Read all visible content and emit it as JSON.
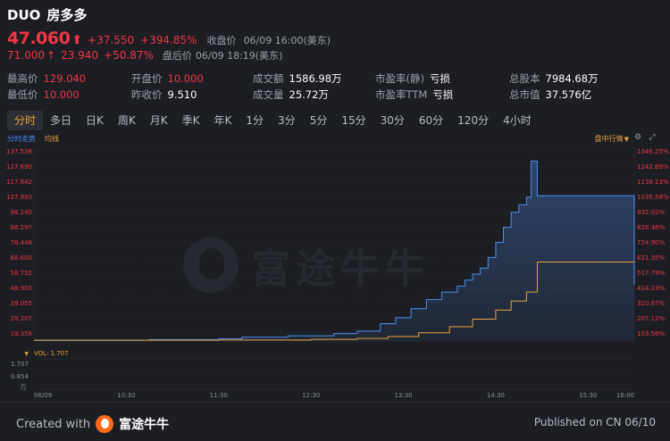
{
  "quote": {
    "ticker": "DUO",
    "company_name": "房多多",
    "last_price": "47.060",
    "change": "+37.550",
    "change_pct": "+394.85%",
    "close_label": "收盘价",
    "close_time": "06/09 16:00(美东)",
    "after_hours_price": "71.000",
    "after_hours_change": "23.940",
    "after_hours_change_pct": "+50.87%",
    "after_hours_label": "盘后价",
    "after_hours_time": "06/09 18:19(美东)"
  },
  "stats": {
    "high": {
      "label": "最高价",
      "value": "129.040"
    },
    "low": {
      "label": "最低价",
      "value": "10.000"
    },
    "open": {
      "label": "开盘价",
      "value": "10.000"
    },
    "prev_close": {
      "label": "昨收价",
      "value": "9.510"
    },
    "turnover": {
      "label": "成交额",
      "value": "1586.98万"
    },
    "volume": {
      "label": "成交量",
      "value": "25.72万"
    },
    "pe_static": {
      "label": "市盈率(静)",
      "value": "亏损"
    },
    "pe_ttm": {
      "label": "市盈率TTM",
      "value": "亏损"
    },
    "shares": {
      "label": "总股本",
      "value": "7984.68万"
    },
    "market_cap": {
      "label": "总市值",
      "value": "37.576亿"
    }
  },
  "tabs": [
    "分时",
    "多日",
    "日K",
    "周K",
    "月K",
    "季K",
    "年K",
    "1分",
    "3分",
    "5分",
    "15分",
    "30分",
    "60分",
    "120分",
    "4小时"
  ],
  "active_tab": "分时",
  "chart_header": {
    "intraday_label": "分时走势",
    "avg_label": "均线",
    "mode_label": "盘中行情",
    "volume_label": "VOL: 1.707",
    "volume_unit": "万"
  },
  "watermark": "富途牛牛",
  "footer": {
    "created_with": "Created with",
    "brand": "富途牛牛",
    "published": "Published on CN 06/10"
  },
  "colors": {
    "up": "#f23645",
    "price_line": "#4e8ef7",
    "avg_line": "#e8a23a",
    "background": "#1c1e23"
  },
  "chart_data": {
    "type": "line",
    "x_ticks": [
      "06/09",
      "10:30",
      "11:30",
      "12:30",
      "13:30",
      "14:30",
      "15:30",
      "16:00"
    ],
    "y_ticks_left": [
      "137.538",
      "127.690",
      "117.842",
      "107.993",
      "98.145",
      "88.297",
      "78.448",
      "68.600",
      "58.752",
      "48.903",
      "39.055",
      "29.207",
      "19.358"
    ],
    "y_ticks_right": [
      "1346.25%",
      "1242.69%",
      "1139.13%",
      "1035.58%",
      "932.02%",
      "828.46%",
      "724.90%",
      "621.35%",
      "517.79%",
      "414.23%",
      "310.67%",
      "207.12%",
      "103.56%"
    ],
    "volume_ticks": [
      "1.707",
      "0.854"
    ],
    "ylim": [
      9.51,
      137.538
    ],
    "series": [
      {
        "name": "分时走势",
        "x": [
          "09:30",
          "10:45",
          "11:30",
          "11:45",
          "12:15",
          "12:45",
          "13:00",
          "13:15",
          "13:25",
          "13:35",
          "13:45",
          "13:55",
          "14:05",
          "14:10",
          "14:15",
          "14:20",
          "14:25",
          "14:30",
          "14:35",
          "14:40",
          "14:45",
          "14:50",
          "14:53",
          "14:57",
          "15:00",
          "15:55",
          "16:00"
        ],
        "values": [
          10.0,
          10.5,
          11.0,
          12.0,
          13.0,
          14.5,
          16.0,
          21.0,
          25.0,
          31.0,
          37.0,
          42.0,
          46.0,
          50.0,
          54.0,
          58.0,
          65.0,
          75.0,
          85.0,
          95.0,
          100.0,
          105.0,
          129.04,
          106.0,
          106.0,
          106.0,
          47.06
        ]
      },
      {
        "name": "均线",
        "x": [
          "09:30",
          "11:30",
          "12:30",
          "13:00",
          "13:20",
          "13:40",
          "14:00",
          "14:15",
          "14:30",
          "14:40",
          "14:50",
          "14:57",
          "15:55",
          "16:00"
        ],
        "values": [
          10.0,
          10.2,
          10.6,
          11.2,
          12.5,
          15.0,
          19.0,
          24.0,
          30.0,
          36.0,
          42.0,
          62.0,
          62.0,
          61.5
        ]
      }
    ]
  }
}
